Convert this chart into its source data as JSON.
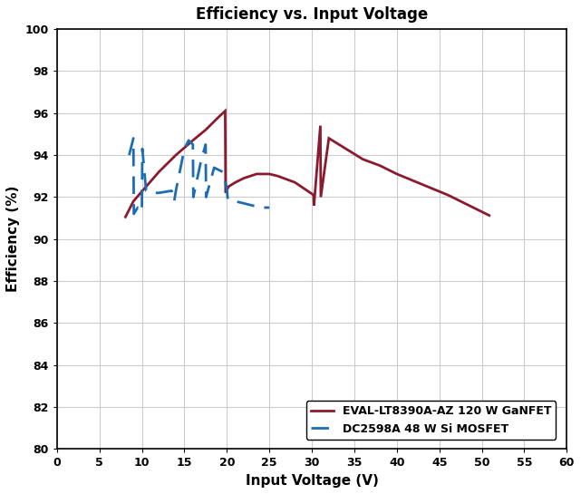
{
  "title": "Efficiency vs. Input Voltage",
  "xlabel": "Input Voltage (V)",
  "ylabel": "Efficiency (%)",
  "xlim": [
    0,
    60
  ],
  "ylim": [
    80,
    100
  ],
  "xticks": [
    0,
    5,
    10,
    15,
    20,
    25,
    30,
    35,
    40,
    45,
    50,
    55,
    60
  ],
  "yticks": [
    80,
    82,
    84,
    86,
    88,
    90,
    92,
    94,
    96,
    98,
    100
  ],
  "ganfet_color": "#8B1A2E",
  "mosfet_color": "#1B6CB5",
  "ganfet_label": "EVAL-LT8390A-AZ 120 W GaNFET",
  "mosfet_label": "DC2598A 48 W Si MOSFET",
  "ganfet_x": [
    8.0,
    9.0,
    10.5,
    12.0,
    14.0,
    16.0,
    17.5,
    19.0,
    19.8,
    19.85,
    20.2,
    21.0,
    22.0,
    23.5,
    25.0,
    26.0,
    28.0,
    30.2,
    30.25,
    31.0,
    31.05,
    32.0,
    34.0,
    36.0,
    38.0,
    40.0,
    43.0,
    46.0,
    48.5,
    51.0
  ],
  "ganfet_y": [
    91.0,
    91.8,
    92.5,
    93.2,
    94.0,
    94.7,
    95.2,
    95.8,
    96.1,
    92.2,
    92.5,
    92.7,
    92.9,
    93.1,
    93.1,
    93.0,
    92.7,
    92.1,
    91.6,
    95.4,
    92.0,
    94.8,
    94.3,
    93.8,
    93.5,
    93.1,
    92.6,
    92.1,
    91.6,
    91.1
  ],
  "mosfet_x": [
    8.5,
    9.0,
    9.05,
    9.5,
    10.0,
    10.05,
    10.5,
    11.0,
    12.0,
    13.5,
    13.8,
    14.0,
    15.0,
    15.5,
    16.0,
    16.05,
    17.0,
    17.5,
    17.55,
    18.5,
    19.5,
    20.0,
    20.1,
    21.0,
    22.0,
    23.0,
    24.0,
    25.0
  ],
  "mosfet_y": [
    94.0,
    94.8,
    91.2,
    91.5,
    91.3,
    94.3,
    92.3,
    92.2,
    92.2,
    92.3,
    91.8,
    92.3,
    94.3,
    94.7,
    94.5,
    92.0,
    93.8,
    94.5,
    92.0,
    93.4,
    93.2,
    92.4,
    91.9,
    91.8,
    91.7,
    91.6,
    91.5,
    91.5
  ],
  "background_color": "#ffffff",
  "grid_color": "#cccccc",
  "title_fontsize": 12,
  "axis_label_fontsize": 11,
  "tick_fontsize": 9
}
